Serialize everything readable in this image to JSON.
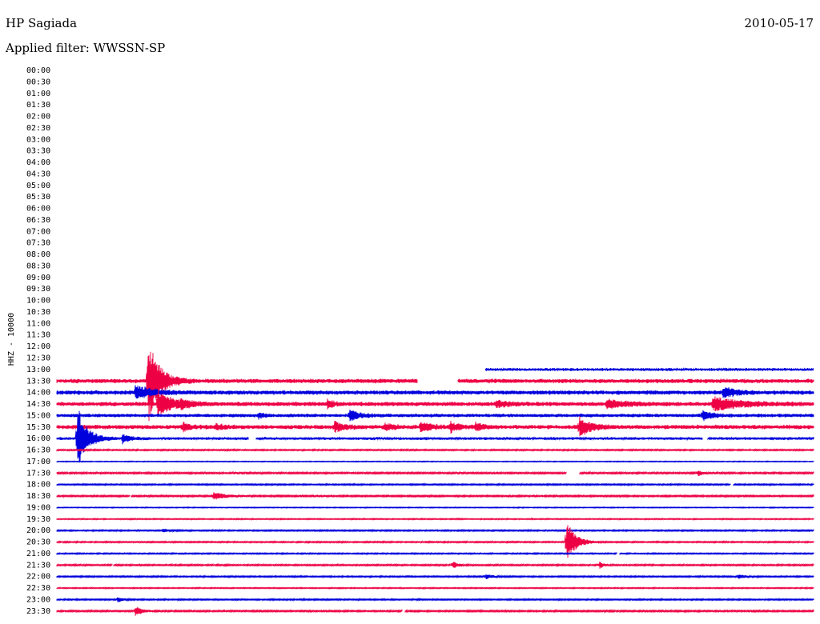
{
  "header": {
    "station": "HP Sagiada",
    "date": "2010-05-17",
    "filter": "Applied filter: WWSSN-SP"
  },
  "chart_data": {
    "type": "line",
    "ylabel": "HHZ - 10000",
    "row_labels": [
      "00:00",
      "00:30",
      "01:00",
      "01:30",
      "02:00",
      "02:30",
      "03:00",
      "03:30",
      "04:00",
      "04:30",
      "05:00",
      "05:30",
      "06:00",
      "06:30",
      "07:00",
      "07:30",
      "08:00",
      "08:30",
      "09:00",
      "09:30",
      "10:00",
      "10:30",
      "11:00",
      "11:30",
      "12:00",
      "12:30",
      "13:00",
      "13:30",
      "14:00",
      "14:30",
      "15:00",
      "15:30",
      "16:00",
      "16:30",
      "17:00",
      "17:30",
      "18:00",
      "18:30",
      "19:00",
      "19:30",
      "20:00",
      "20:30",
      "21:00",
      "21:30",
      "22:00",
      "22:30",
      "23:00",
      "23:30"
    ],
    "colors": [
      "#0000dd",
      "#ee0044"
    ],
    "first_trace_row": "13:00",
    "first_trace_start_min": 17,
    "trace_noise": {
      "13:00": 2,
      "13:30": 3,
      "14:00": 3,
      "14:30": 3,
      "15:00": 2.5,
      "15:30": 3,
      "16:00": 2,
      "16:30": 1,
      "17:00": 0.6,
      "17:30": 1.3,
      "18:00": 1,
      "18:30": 1.2,
      "19:00": 0.6,
      "19:30": 0.8,
      "20:00": 1,
      "20:30": 1,
      "21:00": 0.9,
      "21:30": 1.1,
      "22:00": 1,
      "22:30": 0.8,
      "23:00": 1,
      "23:30": 1.2
    },
    "gaps": [
      {
        "row": "13:30",
        "start_min": 14.3,
        "end_min": 15.9
      },
      {
        "row": "16:00",
        "start_min": 7.6,
        "end_min": 7.9
      },
      {
        "row": "16:00",
        "start_min": 25.6,
        "end_min": 25.8
      },
      {
        "row": "17:30",
        "start_min": 20.2,
        "end_min": 20.7
      },
      {
        "row": "18:00",
        "start_min": 26.7,
        "end_min": 26.8
      },
      {
        "row": "18:30",
        "start_min": 2.9,
        "end_min": 2.95
      },
      {
        "row": "21:00",
        "start_min": 22.2,
        "end_min": 22.3
      },
      {
        "row": "21:30",
        "start_min": 2.2,
        "end_min": 2.25
      },
      {
        "row": "23:30",
        "start_min": 13.7,
        "end_min": 13.8
      }
    ],
    "events": [
      {
        "row": "13:30",
        "min": 3.6,
        "amp": 55,
        "dur": 0.5
      },
      {
        "row": "14:00",
        "min": 3.1,
        "amp": 8,
        "dur": 0.8
      },
      {
        "row": "14:00",
        "min": 26.4,
        "amp": 6,
        "dur": 0.6
      },
      {
        "row": "14:30",
        "min": 4.0,
        "amp": 18,
        "dur": 0.6
      },
      {
        "row": "14:30",
        "min": 26.0,
        "amp": 8,
        "dur": 1.2
      },
      {
        "row": "14:30",
        "min": 4.9,
        "amp": 4,
        "dur": 0.4
      },
      {
        "row": "14:30",
        "min": 10.7,
        "amp": 5,
        "dur": 0.3
      },
      {
        "row": "14:30",
        "min": 17.4,
        "amp": 4,
        "dur": 0.6
      },
      {
        "row": "14:30",
        "min": 21.8,
        "amp": 5,
        "dur": 0.8
      },
      {
        "row": "15:00",
        "min": 11.6,
        "amp": 7,
        "dur": 0.4
      },
      {
        "row": "15:00",
        "min": 25.6,
        "amp": 6,
        "dur": 0.4
      },
      {
        "row": "15:00",
        "min": 8.0,
        "amp": 3,
        "dur": 0.2
      },
      {
        "row": "15:30",
        "min": 11.0,
        "amp": 6,
        "dur": 0.4
      },
      {
        "row": "15:30",
        "min": 13.0,
        "amp": 5,
        "dur": 0.3
      },
      {
        "row": "15:30",
        "min": 14.4,
        "amp": 7,
        "dur": 0.4
      },
      {
        "row": "15:30",
        "min": 15.6,
        "amp": 6,
        "dur": 0.3
      },
      {
        "row": "15:30",
        "min": 16.6,
        "amp": 5,
        "dur": 0.3
      },
      {
        "row": "15:30",
        "min": 20.7,
        "amp": 12,
        "dur": 0.5
      },
      {
        "row": "15:30",
        "min": 5.0,
        "amp": 5,
        "dur": 0.3
      },
      {
        "row": "15:30",
        "min": 6.3,
        "amp": 4,
        "dur": 0.3
      },
      {
        "row": "16:00",
        "min": 0.8,
        "amp": 45,
        "dur": 0.4
      },
      {
        "row": "16:00",
        "min": 2.6,
        "amp": 6,
        "dur": 0.3
      },
      {
        "row": "17:30",
        "min": 25.4,
        "amp": 4,
        "dur": 0.2
      },
      {
        "row": "18:30",
        "min": 6.2,
        "amp": 5,
        "dur": 0.5
      },
      {
        "row": "20:00",
        "min": 4.2,
        "amp": 3,
        "dur": 0.2
      },
      {
        "row": "20:30",
        "min": 20.2,
        "amp": 28,
        "dur": 0.4
      },
      {
        "row": "21:30",
        "min": 15.7,
        "amp": 5,
        "dur": 0.2
      },
      {
        "row": "21:30",
        "min": 21.5,
        "amp": 5,
        "dur": 0.2
      },
      {
        "row": "22:00",
        "min": 17.0,
        "amp": 3,
        "dur": 0.3
      },
      {
        "row": "22:00",
        "min": 27.0,
        "amp": 3,
        "dur": 0.3
      },
      {
        "row": "23:00",
        "min": 2.4,
        "amp": 4,
        "dur": 0.2
      },
      {
        "row": "23:30",
        "min": 3.1,
        "amp": 6,
        "dur": 0.3
      }
    ]
  }
}
